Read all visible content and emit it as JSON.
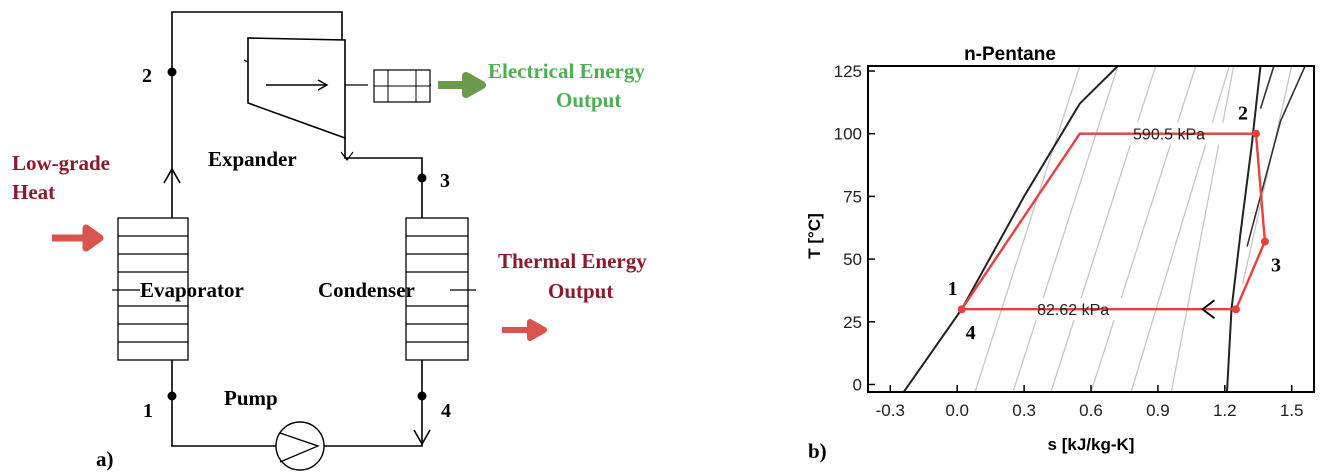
{
  "cycle_diagram": {
    "panel_label": "a)",
    "components": {
      "expander": "Expander",
      "evaporator": "Evaporator",
      "condenser": "Condenser",
      "pump": "Pump"
    },
    "inputs": {
      "heat_line1": "Low-grade",
      "heat_line2": "Heat"
    },
    "outputs": {
      "electrical_line1": "Electrical Energy",
      "electrical_line2": "Output",
      "thermal_line1": "Thermal Energy",
      "thermal_line2": "Output"
    },
    "state_points": [
      "1",
      "2",
      "3",
      "4"
    ],
    "colors": {
      "heat": "#8b1a2b",
      "electrical": "#4caf50",
      "electrical_arrow": "#6a9a4a",
      "thermal_arrow": "#d9534f",
      "line": "#000000"
    }
  },
  "chart_data": {
    "type": "line",
    "panel_label": "b)",
    "title": "n-Pentane",
    "xlabel": "s [kJ/kg-K]",
    "ylabel": "T [°C]",
    "xlim": [
      -0.4,
      1.6
    ],
    "ylim": [
      -3,
      127
    ],
    "xticks": [
      "-0.3",
      "0.0",
      "0.3",
      "0.6",
      "0.9",
      "1.2",
      "1.5"
    ],
    "yticks": [
      "0",
      "25",
      "50",
      "75",
      "100",
      "125"
    ],
    "cycle": {
      "color": "#e8413b",
      "points": [
        {
          "s": 0.02,
          "T": 30
        },
        {
          "s": 0.55,
          "T": 100
        },
        {
          "s": 1.34,
          "T": 100
        },
        {
          "s": 1.38,
          "T": 57
        },
        {
          "s": 1.25,
          "T": 30
        },
        {
          "s": 0.02,
          "T": 30
        }
      ],
      "markers": [
        {
          "s": 0.02,
          "T": 30
        },
        {
          "s": 1.34,
          "T": 100
        },
        {
          "s": 1.38,
          "T": 57
        },
        {
          "s": 1.25,
          "T": 30
        }
      ]
    },
    "pressure_labels": [
      {
        "text": "590.5 kPa",
        "s": 0.95,
        "T": 100
      },
      {
        "text": "82.62 kPa",
        "s": 0.52,
        "T": 30
      }
    ],
    "state_labels": [
      "1",
      "2",
      "3",
      "4"
    ],
    "saturation_dome": {
      "liquid": [
        [
          -0.24,
          -3
        ],
        [
          0.02,
          30
        ],
        [
          0.3,
          75
        ],
        [
          0.55,
          112
        ],
        [
          0.72,
          127
        ]
      ],
      "vapor": [
        [
          1.21,
          -3
        ],
        [
          1.23,
          30
        ],
        [
          1.27,
          60
        ],
        [
          1.32,
          95
        ],
        [
          1.36,
          127
        ]
      ]
    },
    "isobars": [
      [
        [
          0.08,
          -3
        ],
        [
          0.55,
          127
        ]
      ],
      [
        [
          0.25,
          -3
        ],
        [
          0.72,
          127
        ]
      ],
      [
        [
          0.42,
          -3
        ],
        [
          0.89,
          127
        ]
      ],
      [
        [
          0.6,
          -3
        ],
        [
          1.07,
          127
        ]
      ],
      [
        [
          0.78,
          -3
        ],
        [
          1.22,
          127
        ]
      ],
      [
        [
          0.96,
          -3
        ],
        [
          1.24,
          127
        ]
      ],
      [
        [
          1.28,
          40
        ],
        [
          1.5,
          127
        ]
      ]
    ],
    "superheat_curves": [
      [
        [
          1.3,
          55
        ],
        [
          1.45,
          105
        ],
        [
          1.56,
          127
        ]
      ],
      [
        [
          1.36,
          110
        ],
        [
          1.42,
          127
        ]
      ]
    ],
    "grid": false
  }
}
